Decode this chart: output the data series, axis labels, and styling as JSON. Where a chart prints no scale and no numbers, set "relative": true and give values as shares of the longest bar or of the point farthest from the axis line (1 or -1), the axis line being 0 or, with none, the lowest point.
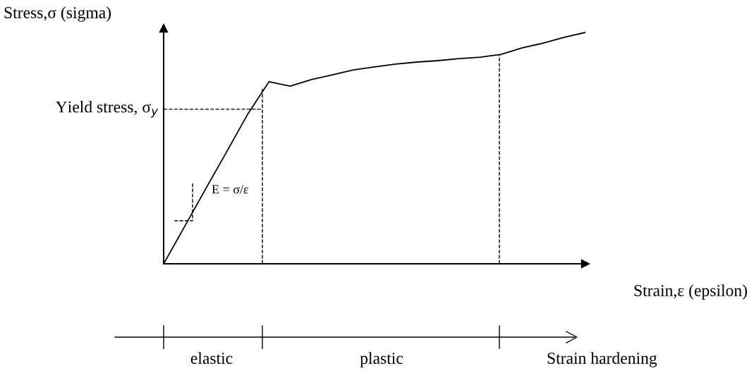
{
  "chart_data": {
    "type": "line",
    "relative": true,
    "xlabel": "Strain,ε (epsilon)",
    "ylabel": "Stress,σ (sigma)",
    "color": "#000000",
    "categories": [
      null,
      null,
      null,
      null,
      null,
      null,
      null,
      null,
      null,
      null,
      null,
      null,
      null,
      null,
      null,
      null,
      null,
      null,
      null,
      null,
      null
    ],
    "values": [
      0,
      0.162,
      0.325,
      0.486,
      0.649,
      0.787,
      0.768,
      0.796,
      0.817,
      0.838,
      0.851,
      0.863,
      0.872,
      0.878,
      0.887,
      0.893,
      0.905,
      0.933,
      0.954,
      0.979,
      1.0
    ],
    "ref_lines": [
      {
        "axis": "y",
        "value": 0.668,
        "label": "Yield stress, σ$_{y}$",
        "line_style": "dashed"
      }
    ],
    "annotations": [
      "E = σ/ε",
      "elastic",
      "plastic",
      "Strain hardening"
    ]
  }
}
